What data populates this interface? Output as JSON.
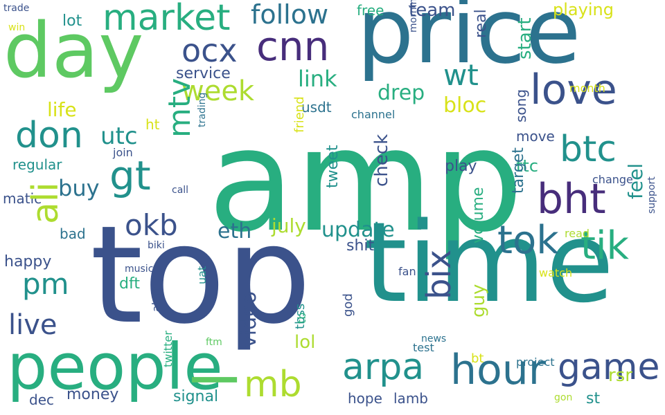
{
  "palette": {
    "purple": "#472d7b",
    "indigo": "#3b528b",
    "blue": "#2c728e",
    "teal": "#21918c",
    "green": "#28ae80",
    "lightgreen": "#5ec962",
    "lime": "#addc30",
    "yellow": "#d8e219"
  },
  "words": [
    {
      "text": "amp",
      "color": "green",
      "size": 205,
      "orient": "h"
    },
    {
      "text": "top",
      "color": "indigo",
      "size": 195,
      "orient": "h"
    },
    {
      "text": "time",
      "color": "teal",
      "size": 160,
      "orient": "h"
    },
    {
      "text": "price",
      "color": "blue",
      "size": 130,
      "orient": "h"
    },
    {
      "text": "day",
      "color": "lightgreen",
      "size": 110,
      "orient": "h"
    },
    {
      "text": "people",
      "color": "green",
      "size": 92,
      "orient": "h"
    },
    {
      "text": "hour",
      "color": "blue",
      "size": 60,
      "orient": "h"
    },
    {
      "text": "love",
      "color": "indigo",
      "size": 60,
      "orient": "h"
    },
    {
      "text": "market",
      "color": "green",
      "size": 52,
      "orient": "h"
    },
    {
      "text": "cnn",
      "color": "purple",
      "size": 58,
      "orient": "h"
    },
    {
      "text": "week",
      "color": "lime",
      "size": 40,
      "orient": "h"
    },
    {
      "text": "ocx",
      "color": "indigo",
      "size": 46,
      "orient": "h"
    },
    {
      "text": "follow",
      "color": "blue",
      "size": 38,
      "orient": "h"
    },
    {
      "text": "don",
      "color": "teal",
      "size": 52,
      "orient": "h"
    },
    {
      "text": "btc",
      "color": "teal",
      "size": 52,
      "orient": "h"
    },
    {
      "text": "bht",
      "color": "purple",
      "size": 60,
      "orient": "h"
    },
    {
      "text": "tok",
      "color": "blue",
      "size": 56,
      "orient": "h"
    },
    {
      "text": "tik",
      "color": "green",
      "size": 56,
      "orient": "h"
    },
    {
      "text": "game",
      "color": "indigo",
      "size": 52,
      "orient": "h"
    },
    {
      "text": "arpa",
      "color": "teal",
      "size": 52,
      "orient": "h"
    },
    {
      "text": "mb",
      "color": "lime",
      "size": 52,
      "orient": "h"
    },
    {
      "text": "gt",
      "color": "teal",
      "size": 58,
      "orient": "h"
    },
    {
      "text": "okb",
      "color": "indigo",
      "size": 42,
      "orient": "h"
    },
    {
      "text": "pm",
      "color": "teal",
      "size": 42,
      "orient": "h"
    },
    {
      "text": "wt",
      "color": "teal",
      "size": 42,
      "orient": "h"
    },
    {
      "text": "live",
      "color": "indigo",
      "size": 40,
      "orient": "h"
    },
    {
      "text": "update",
      "color": "teal",
      "size": 30,
      "orient": "h"
    },
    {
      "text": "eth",
      "color": "blue",
      "size": 30,
      "orient": "h"
    },
    {
      "text": "july",
      "color": "lime",
      "size": 28,
      "orient": "h"
    },
    {
      "text": "link",
      "color": "green",
      "size": 32,
      "orient": "h"
    },
    {
      "text": "drep",
      "color": "green",
      "size": 30,
      "orient": "h"
    },
    {
      "text": "bloc",
      "color": "yellow",
      "size": 30,
      "orient": "h"
    },
    {
      "text": "utc",
      "color": "teal",
      "size": 34,
      "orient": "h"
    },
    {
      "text": "buy",
      "color": "blue",
      "size": 32,
      "orient": "h"
    },
    {
      "text": "life",
      "color": "yellow",
      "size": 28,
      "orient": "h"
    },
    {
      "text": "team",
      "color": "indigo",
      "size": 26,
      "orient": "h"
    },
    {
      "text": "free",
      "color": "green",
      "size": 20,
      "orient": "h"
    },
    {
      "text": "lot",
      "color": "teal",
      "size": 22,
      "orient": "h"
    },
    {
      "text": "playing",
      "color": "yellow",
      "size": 24,
      "orient": "h"
    },
    {
      "text": "service",
      "color": "indigo",
      "size": 22,
      "orient": "h"
    },
    {
      "text": "regular",
      "color": "teal",
      "size": 20,
      "orient": "h"
    },
    {
      "text": "matic",
      "color": "indigo",
      "size": 20,
      "orient": "h"
    },
    {
      "text": "bad",
      "color": "blue",
      "size": 20,
      "orient": "h"
    },
    {
      "text": "happy",
      "color": "indigo",
      "size": 22,
      "orient": "h"
    },
    {
      "text": "dft",
      "color": "green",
      "size": 22,
      "orient": "h"
    },
    {
      "text": "lol",
      "color": "lime",
      "size": 26,
      "orient": "h"
    },
    {
      "text": "dec",
      "color": "indigo",
      "size": 20,
      "orient": "h"
    },
    {
      "text": "money",
      "color": "indigo",
      "size": 22,
      "orient": "h"
    },
    {
      "text": "signal",
      "color": "teal",
      "size": 22,
      "orient": "h"
    },
    {
      "text": "hope",
      "color": "indigo",
      "size": 20,
      "orient": "h"
    },
    {
      "text": "lamb",
      "color": "indigo",
      "size": 20,
      "orient": "h"
    },
    {
      "text": "st",
      "color": "teal",
      "size": 22,
      "orient": "h"
    },
    {
      "text": "rsr",
      "color": "lime",
      "size": 26,
      "orient": "h"
    },
    {
      "text": "shit",
      "color": "indigo",
      "size": 22,
      "orient": "h"
    },
    {
      "text": "play",
      "color": "indigo",
      "size": 22,
      "orient": "h"
    },
    {
      "text": "move",
      "color": "indigo",
      "size": 20,
      "orient": "h"
    },
    {
      "text": "ttc",
      "color": "green",
      "size": 24,
      "orient": "h"
    },
    {
      "text": "usdt",
      "color": "blue",
      "size": 20,
      "orient": "h"
    },
    {
      "text": "channel",
      "color": "blue",
      "size": 16,
      "orient": "h"
    },
    {
      "text": "change",
      "color": "indigo",
      "size": 16,
      "orient": "h"
    },
    {
      "text": "ht",
      "color": "yellow",
      "size": 20,
      "orient": "h"
    },
    {
      "text": "join",
      "color": "indigo",
      "size": 16,
      "orient": "h"
    },
    {
      "text": "call",
      "color": "indigo",
      "size": 14,
      "orient": "h"
    },
    {
      "text": "biki",
      "color": "indigo",
      "size": 14,
      "orient": "h"
    },
    {
      "text": "music",
      "color": "indigo",
      "size": 14,
      "orient": "h"
    },
    {
      "text": "fan",
      "color": "indigo",
      "size": 16,
      "orient": "h"
    },
    {
      "text": "test",
      "color": "blue",
      "size": 16,
      "orient": "h"
    },
    {
      "text": "project",
      "color": "blue",
      "size": 16,
      "orient": "h"
    },
    {
      "text": "gon",
      "color": "lime",
      "size": 14,
      "orient": "h"
    },
    {
      "text": "watch",
      "color": "yellow",
      "size": 16,
      "orient": "h"
    },
    {
      "text": "read",
      "color": "lime",
      "size": 16,
      "orient": "h"
    },
    {
      "text": "month",
      "color": "yellow",
      "size": 16,
      "orient": "h"
    },
    {
      "text": "trade",
      "color": "indigo",
      "size": 14,
      "orient": "h"
    },
    {
      "text": "win",
      "color": "yellow",
      "size": 14,
      "orient": "h"
    },
    {
      "text": "news",
      "color": "blue",
      "size": 14,
      "orient": "h"
    },
    {
      "text": "ftm",
      "color": "lightgreen",
      "size": 14,
      "orient": "h"
    },
    {
      "text": "bt",
      "color": "yellow",
      "size": 18,
      "orient": "h"
    },
    {
      "text": "ali",
      "color": "lime",
      "size": 52,
      "orient": "v"
    },
    {
      "text": "mtv",
      "color": "green",
      "size": 44,
      "orient": "v"
    },
    {
      "text": "bix",
      "color": "indigo",
      "size": 48,
      "orient": "v"
    },
    {
      "text": "l",
      "color": "lightgreen",
      "size": 86,
      "orient": "v"
    },
    {
      "text": "video",
      "color": "indigo",
      "size": 30,
      "orient": "v"
    },
    {
      "text": "start",
      "color": "green",
      "size": 26,
      "orient": "v"
    },
    {
      "text": "real",
      "color": "indigo",
      "size": 22,
      "orient": "v"
    },
    {
      "text": "song",
      "color": "indigo",
      "size": 20,
      "orient": "v"
    },
    {
      "text": "target",
      "color": "blue",
      "size": 22,
      "orient": "v"
    },
    {
      "text": "feel",
      "color": "teal",
      "size": 28,
      "orient": "v"
    },
    {
      "text": "check",
      "color": "indigo",
      "size": 26,
      "orient": "v"
    },
    {
      "text": "tweet",
      "color": "teal",
      "size": 22,
      "orient": "v"
    },
    {
      "text": "friend",
      "color": "yellow",
      "size": 18,
      "orient": "v"
    },
    {
      "text": "volume",
      "color": "green",
      "size": 22,
      "orient": "v"
    },
    {
      "text": "guy",
      "color": "lime",
      "size": 26,
      "orient": "v"
    },
    {
      "text": "god",
      "color": "indigo",
      "size": 18,
      "orient": "v"
    },
    {
      "text": "tbss",
      "color": "teal",
      "size": 18,
      "orient": "v"
    },
    {
      "text": "tb",
      "color": "green",
      "size": 16,
      "orient": "v"
    },
    {
      "text": "uat",
      "color": "teal",
      "size": 16,
      "orient": "v"
    },
    {
      "text": "alert",
      "color": "indigo",
      "size": 16,
      "orient": "v"
    },
    {
      "text": "twitter",
      "color": "green",
      "size": 16,
      "orient": "v"
    },
    {
      "text": "trading",
      "color": "blue",
      "size": 14,
      "orient": "v"
    },
    {
      "text": "morning",
      "color": "indigo",
      "size": 14,
      "orient": "v"
    },
    {
      "text": "support",
      "color": "indigo",
      "size": 14,
      "orient": "v"
    }
  ]
}
